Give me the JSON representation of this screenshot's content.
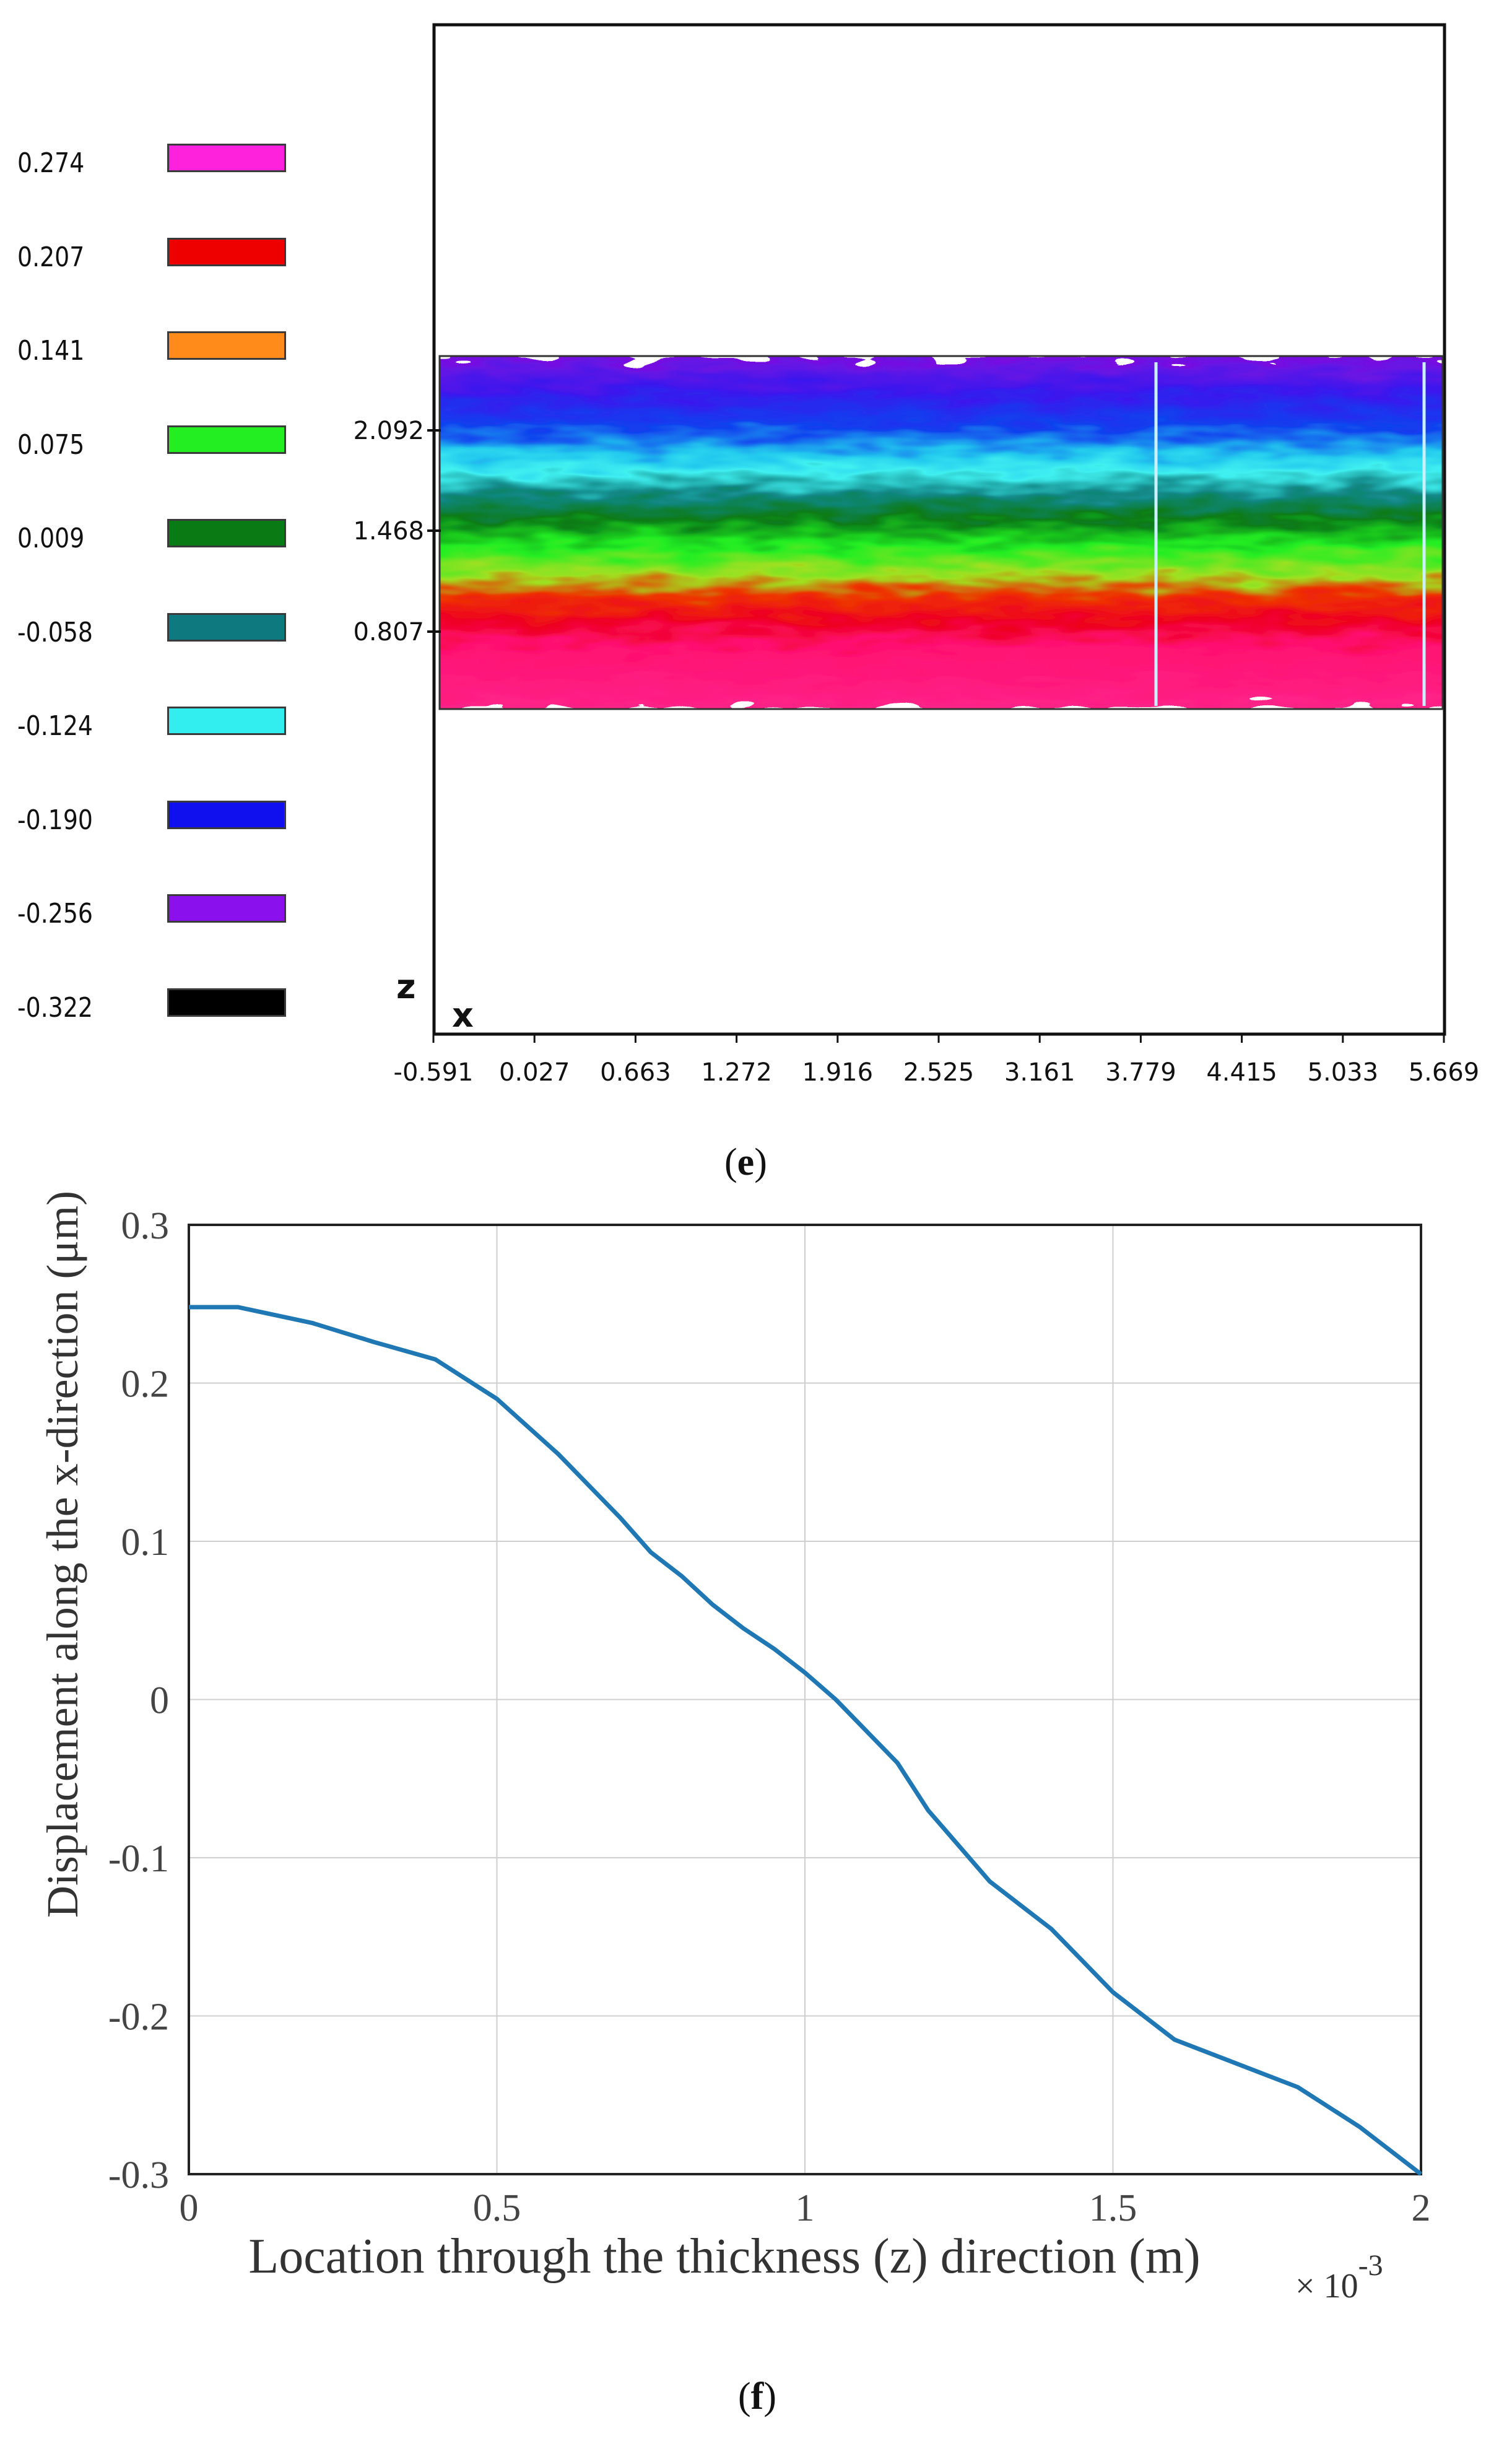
{
  "panel_e": {
    "label": "e",
    "legend": [
      {
        "value": "0.274",
        "color": "#ff22dd"
      },
      {
        "value": "0.207",
        "color": "#ee0000"
      },
      {
        "value": "0.141",
        "color": "#ff8c1a"
      },
      {
        "value": "0.075",
        "color": "#22ee22"
      },
      {
        "value": "0.009",
        "color": "#0a7a14"
      },
      {
        "value": "-0.058",
        "color": "#0e7a80"
      },
      {
        "value": "-0.124",
        "color": "#33eeee"
      },
      {
        "value": "-0.190",
        "color": "#1010ee"
      },
      {
        "value": "-0.256",
        "color": "#8a10ee"
      },
      {
        "value": "-0.322",
        "color": "#000000"
      }
    ],
    "z_axis_label": "z",
    "x_axis_label": "x",
    "z_ticks": [
      "2.092",
      "1.468",
      "0.807"
    ],
    "x_ticks": [
      "-0.591",
      "0.027",
      "0.663",
      "1.272",
      "1.916",
      "2.525",
      "3.161",
      "3.779",
      "4.415",
      "5.033",
      "5.669"
    ]
  },
  "panel_f": {
    "label": "f",
    "chart_data": {
      "type": "line",
      "title": "",
      "xlabel": "Location through the thickness (z) direction (m)",
      "x_multiplier": "× 10",
      "x_multiplier_exp": "-3",
      "ylabel": "Displacement along the x-direction (μm)",
      "xlim": [
        0,
        2
      ],
      "ylim": [
        -0.3,
        0.3
      ],
      "grid": true,
      "x_ticks": [
        "0",
        "0.5",
        "1",
        "1.5",
        "2"
      ],
      "y_ticks": [
        "0.3",
        "0.2",
        "0.1",
        "0",
        "-0.1",
        "-0.2",
        "-0.3"
      ],
      "series": [
        {
          "name": "displacement",
          "color": "#1f77b4",
          "x": [
            0,
            0.08,
            0.2,
            0.3,
            0.4,
            0.5,
            0.6,
            0.7,
            0.75,
            0.8,
            0.85,
            0.9,
            0.95,
            1.0,
            1.05,
            1.1,
            1.15,
            1.2,
            1.3,
            1.4,
            1.45,
            1.5,
            1.6,
            1.7,
            1.8,
            1.9,
            2.0
          ],
          "y": [
            0.248,
            0.248,
            0.238,
            0.226,
            0.215,
            0.19,
            0.155,
            0.115,
            0.093,
            0.078,
            0.06,
            0.045,
            0.032,
            0.017,
            0.0,
            -0.02,
            -0.04,
            -0.07,
            -0.115,
            -0.145,
            -0.165,
            -0.185,
            -0.215,
            -0.23,
            -0.245,
            -0.27,
            -0.3
          ]
        }
      ]
    }
  }
}
